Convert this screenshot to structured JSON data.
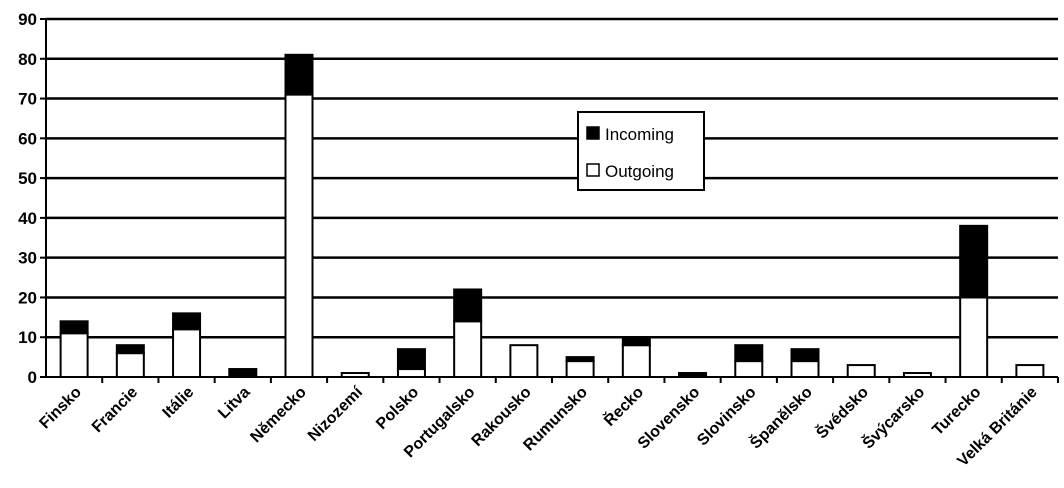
{
  "chart_data": {
    "type": "bar",
    "stacked": true,
    "categories": [
      "Finsko",
      "Francie",
      "Itálie",
      "Litva",
      "Německo",
      "Nizozemí",
      "Polsko",
      "Portugalsko",
      "Rakousko",
      "Rumunsko",
      "Řecko",
      "Slovensko",
      "Slovinsko",
      "Španělsko",
      "Švédsko",
      "Švýcarsko",
      "Turecko",
      "Velká Británie"
    ],
    "series": [
      {
        "name": "Outgoing",
        "color": "#ffffff",
        "values": [
          11,
          6,
          12,
          0,
          71,
          1,
          2,
          14,
          8,
          4,
          8,
          0,
          4,
          4,
          3,
          1,
          20,
          3
        ]
      },
      {
        "name": "Incoming",
        "color": "#000000",
        "values": [
          3,
          2,
          4,
          2,
          10,
          0,
          5,
          8,
          0,
          1,
          2,
          1,
          4,
          3,
          0,
          0,
          18,
          0
        ]
      }
    ],
    "ylim": [
      0,
      90
    ],
    "yticks": [
      "0",
      "10",
      "20",
      "30",
      "40",
      "50",
      "60",
      "70",
      "80",
      "90"
    ],
    "grid": true,
    "legend": {
      "position": "center-right",
      "entries": [
        "Incoming",
        "Outgoing"
      ]
    }
  }
}
